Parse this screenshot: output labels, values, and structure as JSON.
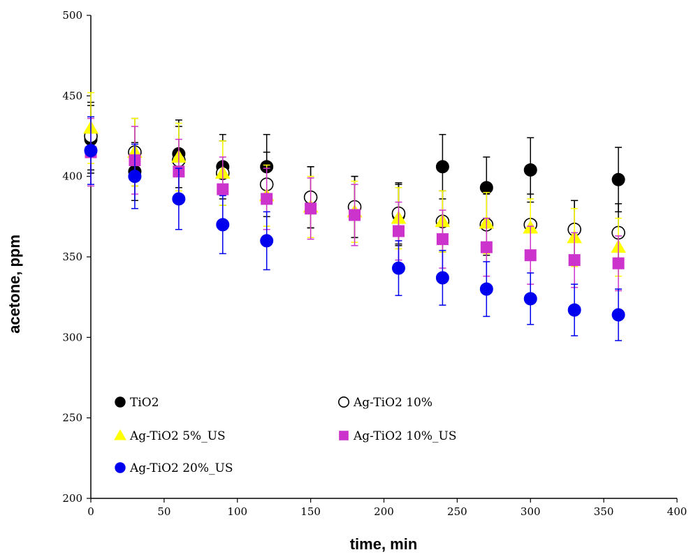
{
  "chart_data": {
    "type": "scatter",
    "xlabel": "time, min",
    "ylabel": "acetone, ppm",
    "xlim": [
      0,
      400
    ],
    "ylim": [
      200,
      500
    ],
    "xticks": [
      "0",
      "50",
      "100",
      "150",
      "200",
      "250",
      "300",
      "350",
      "400"
    ],
    "yticks": [
      "200",
      "250",
      "300",
      "350",
      "400",
      "450",
      "500"
    ],
    "grid": false,
    "legend_position": "bottom-left",
    "error_bars": true,
    "series": [
      {
        "name": "TiO2",
        "marker": "circle-filled",
        "color": "#000000",
        "x": [
          0,
          30,
          60,
          90,
          120,
          150,
          180,
          210,
          240,
          270,
          300,
          330,
          360
        ],
        "y": [
          423,
          403,
          414,
          406,
          406,
          387,
          381,
          376,
          406,
          393,
          404,
          367,
          398
        ],
        "err": [
          21,
          18,
          21,
          20,
          20,
          19,
          19,
          19,
          20,
          19,
          20,
          18,
          20
        ]
      },
      {
        "name": "Ag-TiO2 10%",
        "marker": "circle-open",
        "color": "#000000",
        "x": [
          0,
          30,
          60,
          90,
          120,
          150,
          180,
          210,
          240,
          270,
          300,
          330,
          360
        ],
        "y": [
          425,
          415,
          410,
          402,
          395,
          387,
          381,
          377,
          372,
          370,
          370,
          367,
          365
        ],
        "err": [
          21,
          21,
          21,
          20,
          20,
          19,
          19,
          19,
          19,
          19,
          19,
          18,
          18
        ]
      },
      {
        "name": "Ag-TiO2 5%_US",
        "marker": "triangle",
        "color": "#ffff00",
        "x": [
          0,
          30,
          60,
          90,
          120,
          150,
          180,
          210,
          240,
          270,
          300,
          330,
          360
        ],
        "y": [
          430,
          415,
          412,
          402,
          388,
          381,
          378,
          374,
          372,
          371,
          368,
          362,
          356
        ],
        "err": [
          22,
          21,
          21,
          20,
          19,
          19,
          19,
          19,
          19,
          19,
          18,
          18,
          18
        ]
      },
      {
        "name": "Ag-TiO2 10%_US",
        "marker": "square",
        "color": "#cc33cc",
        "x": [
          0,
          30,
          60,
          90,
          120,
          150,
          180,
          210,
          240,
          270,
          300,
          330,
          360
        ],
        "y": [
          415,
          410,
          403,
          392,
          386,
          380,
          376,
          366,
          361,
          356,
          351,
          348,
          346
        ],
        "err": [
          21,
          21,
          20,
          20,
          19,
          19,
          19,
          18,
          18,
          18,
          18,
          17,
          17
        ]
      },
      {
        "name": "Ag-TiO2 20%_US",
        "marker": "circle-filled",
        "color": "#0000ee",
        "x": [
          0,
          30,
          60,
          90,
          120,
          150,
          180,
          210,
          240,
          270,
          300,
          330,
          360
        ],
        "y": [
          416,
          400,
          386,
          370,
          360,
          null,
          null,
          343,
          337,
          330,
          324,
          317,
          314
        ],
        "err": [
          21,
          20,
          19,
          18,
          18,
          null,
          null,
          17,
          17,
          17,
          16,
          16,
          16
        ]
      }
    ]
  }
}
